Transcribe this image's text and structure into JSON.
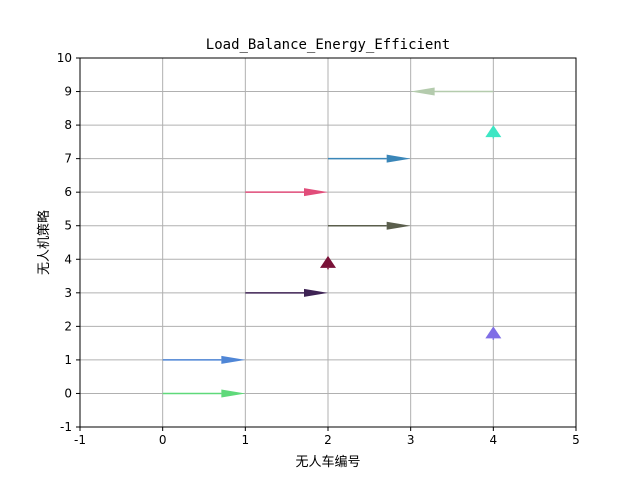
{
  "chart_data": {
    "type": "quiver",
    "title": "Load_Balance_Energy_Efficient",
    "xlabel": "无人车编号",
    "ylabel": "无人机策略",
    "xlim": [
      -1,
      5
    ],
    "ylim": [
      -1,
      10
    ],
    "xticks": [
      "-1",
      "0",
      "1",
      "2",
      "3",
      "4",
      "5"
    ],
    "yticks": [
      "-1",
      "0",
      "1",
      "2",
      "3",
      "4",
      "5",
      "6",
      "7",
      "8",
      "9",
      "10"
    ],
    "grid": true,
    "arrows": [
      {
        "x": 0,
        "y": 0,
        "dx": 1,
        "dy": 0,
        "color": "#5fd97a"
      },
      {
        "x": 0,
        "y": 1,
        "dx": 1,
        "dy": 0,
        "color": "#4f86d6"
      },
      {
        "x": 4,
        "y": 1.6,
        "dx": 0,
        "dy": 0.4,
        "color": "#7f6ee6"
      },
      {
        "x": 1,
        "y": 3,
        "dx": 1,
        "dy": 0,
        "color": "#3e2354"
      },
      {
        "x": 2,
        "y": 3.7,
        "dx": 0,
        "dy": 0.4,
        "color": "#7a1238"
      },
      {
        "x": 2,
        "y": 5,
        "dx": 1,
        "dy": 0,
        "color": "#5a5e4c"
      },
      {
        "x": 1,
        "y": 6,
        "dx": 1,
        "dy": 0,
        "color": "#e14d7a"
      },
      {
        "x": 2,
        "y": 7,
        "dx": 1,
        "dy": 0,
        "color": "#3a86b8"
      },
      {
        "x": 4,
        "y": 7.6,
        "dx": 0,
        "dy": 0.4,
        "color": "#3ee6c4"
      },
      {
        "x": 4,
        "y": 9,
        "dx": -1,
        "dy": 0,
        "color": "#b4cbad"
      }
    ]
  }
}
